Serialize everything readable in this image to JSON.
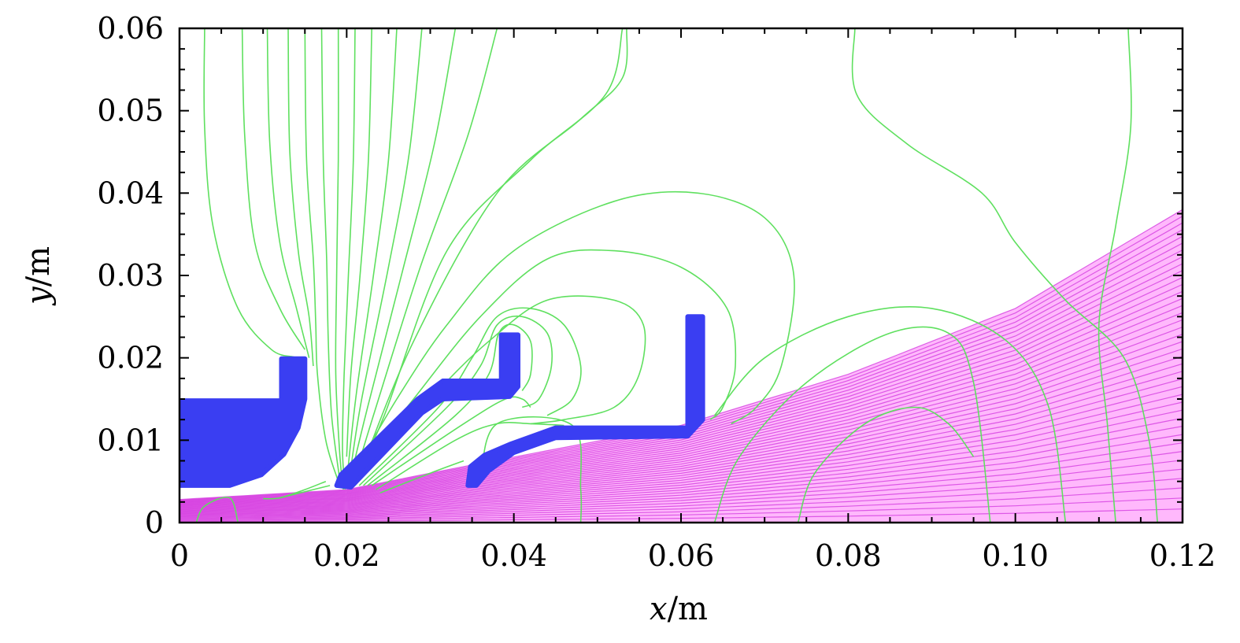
{
  "chart_data": {
    "type": "contour",
    "xlabel": {
      "var": "x",
      "unit": "/m"
    },
    "ylabel": {
      "var": "y",
      "unit": "/m"
    },
    "xlim": [
      0,
      0.12
    ],
    "ylim": [
      0,
      0.06
    ],
    "x_ticks": [
      {
        "value": 0,
        "label": "0"
      },
      {
        "value": 0.02,
        "label": "0.02"
      },
      {
        "value": 0.04,
        "label": "0.04"
      },
      {
        "value": 0.06,
        "label": "0.06"
      },
      {
        "value": 0.08,
        "label": "0.08"
      },
      {
        "value": 0.1,
        "label": "0.10"
      },
      {
        "value": 0.12,
        "label": "0.12"
      }
    ],
    "y_ticks": [
      {
        "value": 0,
        "label": "0"
      },
      {
        "value": 0.01,
        "label": "0.01"
      },
      {
        "value": 0.02,
        "label": "0.02"
      },
      {
        "value": 0.03,
        "label": "0.03"
      },
      {
        "value": 0.04,
        "label": "0.04"
      },
      {
        "value": 0.05,
        "label": "0.05"
      },
      {
        "value": 0.06,
        "label": "0.06"
      }
    ],
    "colors": {
      "electrodes": "#3a3ef2",
      "equipotentials": "#5fe05f",
      "beam": "#d43fe0",
      "beam_fill": "#ff33f5"
    },
    "electrodes": [
      {
        "polygon": [
          [
            0,
            0.0148
          ],
          [
            0.0122,
            0.0148
          ],
          [
            0.0122,
            0.0199
          ],
          [
            0.015,
            0.0199
          ],
          [
            0.015,
            0.015
          ],
          [
            0.0142,
            0.0115
          ],
          [
            0.0125,
            0.0083
          ],
          [
            0.0098,
            0.0058
          ],
          [
            0.006,
            0.0045
          ],
          [
            0,
            0.0045
          ]
        ]
      },
      {
        "polygon": [
          [
            0.0188,
            0.0045
          ],
          [
            0.0193,
            0.0058
          ],
          [
            0.0285,
            0.015
          ],
          [
            0.0315,
            0.0172
          ],
          [
            0.0385,
            0.0172
          ],
          [
            0.0385,
            0.0228
          ],
          [
            0.0405,
            0.0228
          ],
          [
            0.0405,
            0.0165
          ],
          [
            0.0395,
            0.0153
          ],
          [
            0.0315,
            0.015
          ],
          [
            0.029,
            0.0133
          ],
          [
            0.0205,
            0.0043
          ]
        ]
      },
      {
        "polygon": [
          [
            0.0345,
            0.0045
          ],
          [
            0.0348,
            0.0068
          ],
          [
            0.0365,
            0.0082
          ],
          [
            0.0395,
            0.0095
          ],
          [
            0.045,
            0.0115
          ],
          [
            0.0608,
            0.0115
          ],
          [
            0.0608,
            0.025
          ],
          [
            0.0626,
            0.025
          ],
          [
            0.0626,
            0.0125
          ],
          [
            0.0608,
            0.0105
          ],
          [
            0.045,
            0.0103
          ],
          [
            0.04,
            0.0085
          ],
          [
            0.037,
            0.0063
          ],
          [
            0.0355,
            0.0045
          ]
        ]
      }
    ],
    "beam_envelope": [
      [
        0,
        0.0028
      ],
      [
        0.02,
        0.004
      ],
      [
        0.035,
        0.007
      ],
      [
        0.06,
        0.0118
      ],
      [
        0.08,
        0.018
      ],
      [
        0.1,
        0.026
      ],
      [
        0.12,
        0.038
      ]
    ],
    "beam_rays": 40,
    "equipotentials": [
      [
        [
          0.003,
          0.06
        ],
        [
          0.003,
          0.048
        ],
        [
          0.004,
          0.036
        ],
        [
          0.007,
          0.026
        ],
        [
          0.011,
          0.021
        ],
        [
          0.014,
          0.02
        ],
        [
          0.0152,
          0.019
        ]
      ],
      [
        [
          0.0075,
          0.06
        ],
        [
          0.0078,
          0.047
        ],
        [
          0.009,
          0.034
        ],
        [
          0.012,
          0.026
        ],
        [
          0.015,
          0.021
        ]
      ],
      [
        [
          0.0105,
          0.06
        ],
        [
          0.0108,
          0.046
        ],
        [
          0.012,
          0.034
        ],
        [
          0.014,
          0.026
        ],
        [
          0.0155,
          0.02
        ]
      ],
      [
        [
          0.013,
          0.06
        ],
        [
          0.0132,
          0.045
        ],
        [
          0.0142,
          0.033
        ],
        [
          0.0155,
          0.025
        ],
        [
          0.016,
          0.019
        ]
      ],
      [
        [
          0.015,
          0.06
        ],
        [
          0.0152,
          0.044
        ],
        [
          0.016,
          0.032
        ],
        [
          0.0163,
          0.024
        ],
        [
          0.0165,
          0.018
        ],
        [
          0.0175,
          0.01
        ],
        [
          0.019,
          0.005
        ]
      ],
      [
        [
          0.017,
          0.06
        ],
        [
          0.0172,
          0.044
        ],
        [
          0.0176,
          0.032
        ],
        [
          0.0178,
          0.022
        ],
        [
          0.0182,
          0.013
        ],
        [
          0.0192,
          0.005
        ]
      ],
      [
        [
          0.019,
          0.06
        ],
        [
          0.019,
          0.044
        ],
        [
          0.0188,
          0.03
        ],
        [
          0.0187,
          0.018
        ],
        [
          0.0192,
          0.008
        ],
        [
          0.0196,
          0.004
        ]
      ],
      [
        [
          0.021,
          0.06
        ],
        [
          0.0208,
          0.044
        ],
        [
          0.0202,
          0.03
        ],
        [
          0.0197,
          0.018
        ],
        [
          0.0195,
          0.009
        ],
        [
          0.0198,
          0.004
        ]
      ],
      [
        [
          0.023,
          0.06
        ],
        [
          0.0226,
          0.044
        ],
        [
          0.0216,
          0.03
        ],
        [
          0.0205,
          0.018
        ],
        [
          0.02,
          0.008
        ]
      ],
      [
        [
          0.026,
          0.06
        ],
        [
          0.025,
          0.044
        ],
        [
          0.0232,
          0.03
        ],
        [
          0.0212,
          0.016
        ],
        [
          0.0202,
          0.007
        ]
      ],
      [
        [
          0.029,
          0.06
        ],
        [
          0.0275,
          0.045
        ],
        [
          0.025,
          0.031
        ],
        [
          0.0218,
          0.015
        ],
        [
          0.0204,
          0.006
        ]
      ],
      [
        [
          0.033,
          0.06
        ],
        [
          0.0305,
          0.046
        ],
        [
          0.0268,
          0.031
        ],
        [
          0.0225,
          0.014
        ],
        [
          0.0206,
          0.006
        ]
      ],
      [
        [
          0.038,
          0.06
        ],
        [
          0.0345,
          0.047
        ],
        [
          0.0288,
          0.031
        ],
        [
          0.0232,
          0.013
        ],
        [
          0.0208,
          0.005
        ]
      ],
      [
        [
          0.053,
          0.06
        ],
        [
          0.051,
          0.052
        ],
        [
          0.042,
          0.044
        ],
        [
          0.032,
          0.033
        ],
        [
          0.0245,
          0.013
        ],
        [
          0.021,
          0.005
        ]
      ],
      [
        [
          0.0535,
          0.06
        ],
        [
          0.053,
          0.054
        ],
        [
          0.048,
          0.049
        ],
        [
          0.038,
          0.04
        ],
        [
          0.028,
          0.022
        ],
        [
          0.0212,
          0.005
        ]
      ],
      [
        [
          0.02,
          0.0045
        ],
        [
          0.026,
          0.015
        ],
        [
          0.032,
          0.024
        ],
        [
          0.04,
          0.033
        ],
        [
          0.052,
          0.039
        ],
        [
          0.062,
          0.04
        ],
        [
          0.07,
          0.037
        ],
        [
          0.0735,
          0.03
        ],
        [
          0.072,
          0.019
        ],
        [
          0.069,
          0.014
        ],
        [
          0.066,
          0.012
        ]
      ],
      [
        [
          0.02,
          0.0045
        ],
        [
          0.028,
          0.015
        ],
        [
          0.036,
          0.025
        ],
        [
          0.044,
          0.032
        ],
        [
          0.052,
          0.033
        ],
        [
          0.06,
          0.031
        ],
        [
          0.0655,
          0.026
        ],
        [
          0.0665,
          0.019
        ],
        [
          0.065,
          0.014
        ],
        [
          0.0635,
          0.0125
        ]
      ],
      [
        [
          0.021,
          0.0045
        ],
        [
          0.03,
          0.015
        ],
        [
          0.037,
          0.022
        ],
        [
          0.044,
          0.027
        ],
        [
          0.052,
          0.027
        ],
        [
          0.0555,
          0.024
        ],
        [
          0.055,
          0.018
        ],
        [
          0.052,
          0.014
        ],
        [
          0.046,
          0.0125
        ],
        [
          0.042,
          0.012
        ]
      ],
      [
        [
          0.0215,
          0.0045
        ],
        [
          0.031,
          0.014
        ],
        [
          0.035,
          0.02
        ],
        [
          0.038,
          0.025
        ],
        [
          0.042,
          0.026
        ],
        [
          0.046,
          0.024
        ],
        [
          0.048,
          0.019
        ],
        [
          0.047,
          0.015
        ],
        [
          0.044,
          0.013
        ]
      ],
      [
        [
          0.022,
          0.0045
        ],
        [
          0.032,
          0.014
        ],
        [
          0.036,
          0.019
        ],
        [
          0.038,
          0.024
        ],
        [
          0.041,
          0.025
        ],
        [
          0.044,
          0.023
        ],
        [
          0.0445,
          0.019
        ],
        [
          0.043,
          0.015
        ],
        [
          0.041,
          0.014
        ]
      ],
      [
        [
          0.0225,
          0.0045
        ],
        [
          0.033,
          0.013
        ],
        [
          0.037,
          0.018
        ],
        [
          0.0382,
          0.023
        ],
        [
          0.04,
          0.024
        ],
        [
          0.042,
          0.022
        ],
        [
          0.042,
          0.018
        ],
        [
          0.041,
          0.016
        ]
      ],
      [
        [
          0.023,
          0.0045
        ],
        [
          0.034,
          0.012
        ],
        [
          0.039,
          0.015
        ],
        [
          0.041,
          0.015
        ],
        [
          0.042,
          0.014
        ]
      ],
      [
        [
          0.0235,
          0.004
        ],
        [
          0.033,
          0.01
        ],
        [
          0.038,
          0.012
        ],
        [
          0.042,
          0.012
        ],
        [
          0.046,
          0.0118
        ]
      ],
      [
        [
          0.024,
          0.0036
        ],
        [
          0.03,
          0.006
        ],
        [
          0.034,
          0.0075
        ]
      ],
      [
        [
          0.018,
          0.0045
        ],
        [
          0.016,
          0.004
        ],
        [
          0.014,
          0.0035
        ],
        [
          0.012,
          0.003
        ]
      ],
      [
        [
          0.0175,
          0.005
        ],
        [
          0.015,
          0.004
        ],
        [
          0.012,
          0.003
        ],
        [
          0.01,
          0.0029
        ]
      ],
      [
        [
          0.0808,
          0.06
        ],
        [
          0.081,
          0.052
        ],
        [
          0.087,
          0.046
        ],
        [
          0.096,
          0.04
        ],
        [
          0.1,
          0.034
        ],
        [
          0.106,
          0.027
        ],
        [
          0.113,
          0.02
        ],
        [
          0.116,
          0.01
        ],
        [
          0.117,
          0.0
        ]
      ],
      [
        [
          0.1135,
          0.06
        ],
        [
          0.1138,
          0.048
        ],
        [
          0.112,
          0.036
        ],
        [
          0.11,
          0.024
        ],
        [
          0.111,
          0.012
        ],
        [
          0.112,
          0.0
        ]
      ],
      [
        [
          0.064,
          0.013
        ],
        [
          0.07,
          0.02
        ],
        [
          0.08,
          0.025
        ],
        [
          0.09,
          0.026
        ],
        [
          0.099,
          0.022
        ],
        [
          0.104,
          0.014
        ],
        [
          0.106,
          0.0
        ]
      ],
      [
        [
          0.064,
          0.0
        ],
        [
          0.067,
          0.008
        ],
        [
          0.075,
          0.017
        ],
        [
          0.085,
          0.023
        ],
        [
          0.092,
          0.023
        ],
        [
          0.095,
          0.017
        ],
        [
          0.097,
          0.0
        ]
      ],
      [
        [
          0.074,
          0.0
        ],
        [
          0.076,
          0.006
        ],
        [
          0.082,
          0.012
        ],
        [
          0.088,
          0.014
        ],
        [
          0.092,
          0.012
        ],
        [
          0.095,
          0.008
        ]
      ],
      [
        [
          0.002,
          0.0
        ],
        [
          0.003,
          0.002
        ],
        [
          0.006,
          0.003
        ],
        [
          0.007,
          0.0
        ]
      ],
      [
        [
          0.036,
          0.005
        ],
        [
          0.038,
          0.012
        ],
        [
          0.047,
          0.0118
        ],
        [
          0.048,
          0.004
        ],
        [
          0.048,
          0.0
        ]
      ]
    ]
  }
}
